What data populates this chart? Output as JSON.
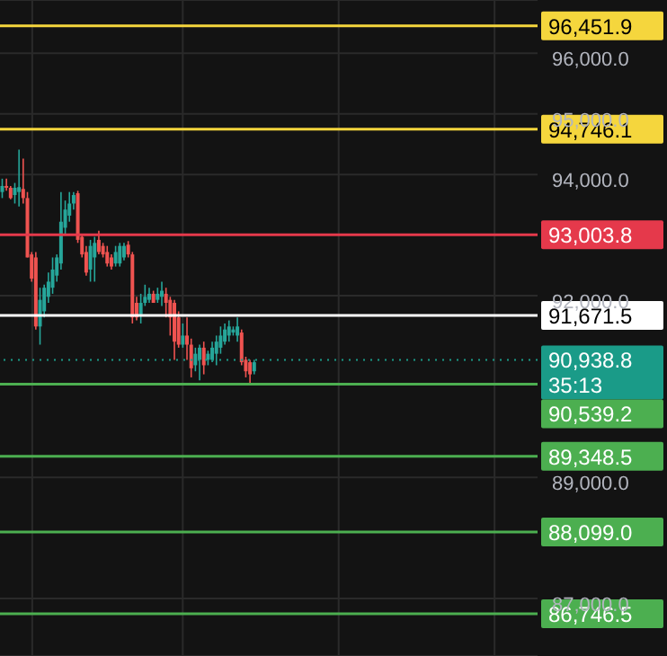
{
  "chart_data": {
    "type": "candlestick",
    "categories": [
      null,
      null,
      null,
      null,
      null,
      null,
      null,
      null,
      null,
      null,
      null,
      null,
      null,
      null,
      null,
      null,
      null,
      null,
      null,
      null,
      null,
      null,
      null,
      null,
      null,
      null,
      null,
      null,
      null,
      null,
      null,
      null,
      null,
      null,
      null,
      null,
      null,
      null,
      null,
      null,
      null,
      null,
      null,
      null,
      null,
      null,
      null,
      null,
      null,
      null,
      null,
      null,
      null,
      null,
      null,
      null,
      null,
      null,
      null,
      null,
      null,
      null,
      null,
      null,
      null,
      null,
      null,
      null,
      null,
      null,
      null,
      null,
      null,
      null,
      null,
      null,
      null,
      null,
      null,
      null,
      null,
      null,
      null,
      null,
      null,
      null,
      null,
      null,
      null,
      null,
      null,
      null,
      null,
      null,
      null,
      null,
      null,
      null,
      null,
      null,
      null,
      null,
      null,
      null,
      null,
      null,
      null,
      null,
      null,
      null,
      null,
      null,
      null,
      null,
      null,
      null,
      null,
      null,
      null,
      null,
      null,
      null,
      null,
      null,
      null,
      null,
      null,
      null
    ],
    "ohlc": [
      [
        93710,
        93930,
        93610,
        93810
      ],
      [
        93810,
        93930,
        93730,
        93790
      ],
      [
        93780,
        93810,
        93590,
        93610
      ],
      [
        93660,
        93860,
        93520,
        93780
      ],
      [
        93710,
        94410,
        93470,
        93790
      ],
      [
        93760,
        94260,
        93520,
        93610
      ],
      [
        93610,
        93710,
        92630,
        92630
      ],
      [
        92680,
        92720,
        92230,
        92280
      ],
      [
        92630,
        92720,
        91440,
        91490
      ],
      [
        91490,
        92130,
        91190,
        91930
      ],
      [
        91740,
        92180,
        91640,
        92130
      ],
      [
        91980,
        92380,
        91880,
        92230
      ],
      [
        92130,
        92630,
        92030,
        92430
      ],
      [
        92330,
        92680,
        92230,
        92630
      ],
      [
        92530,
        93710,
        92430,
        93220
      ],
      [
        93120,
        93570,
        93020,
        93420
      ],
      [
        93320,
        93710,
        93220,
        93520
      ],
      [
        93520,
        93710,
        93420,
        93660
      ],
      [
        93690,
        93730,
        92870,
        92920
      ],
      [
        92970,
        93020,
        92630,
        92680
      ],
      [
        92720,
        92820,
        92330,
        92380
      ],
      [
        92430,
        92920,
        92230,
        92820
      ],
      [
        92630,
        92970,
        92230,
        92870
      ],
      [
        92920,
        93070,
        92680,
        92720
      ],
      [
        92820,
        92870,
        92630,
        92680
      ],
      [
        92720,
        92820,
        92480,
        92530
      ],
      [
        92630,
        92680,
        92430,
        92480
      ],
      [
        92530,
        92820,
        92480,
        92720
      ],
      [
        92530,
        92870,
        92480,
        92820
      ],
      [
        92630,
        92870,
        92580,
        92820
      ],
      [
        92840,
        92900,
        92630,
        92680
      ],
      [
        92680,
        92720,
        91540,
        91640
      ],
      [
        91880,
        91980,
        91590,
        91640
      ],
      [
        91690,
        92030,
        91540,
        91880
      ],
      [
        91880,
        92180,
        91830,
        91980
      ],
      [
        91930,
        92130,
        91880,
        92030
      ],
      [
        92030,
        92080,
        91880,
        91880
      ],
      [
        91930,
        92130,
        91880,
        92030
      ],
      [
        91980,
        92230,
        91830,
        92080
      ],
      [
        92030,
        92130,
        91640,
        91880
      ],
      [
        91930,
        91980,
        91340,
        91640
      ],
      [
        91880,
        91930,
        90940,
        91240
      ],
      [
        91640,
        91740,
        91140,
        91190
      ],
      [
        91190,
        91540,
        91140,
        91340
      ],
      [
        91340,
        91640,
        90940,
        91190
      ],
      [
        91190,
        91290,
        90650,
        90800
      ],
      [
        90850,
        91140,
        90750,
        91040
      ],
      [
        90940,
        91190,
        90600,
        91140
      ],
      [
        91140,
        91240,
        90700,
        90850
      ],
      [
        90940,
        91090,
        90850,
        91040
      ],
      [
        90940,
        91240,
        90900,
        91140
      ],
      [
        91040,
        91340,
        90850,
        91240
      ],
      [
        91140,
        91490,
        91040,
        91340
      ],
      [
        91240,
        91540,
        91190,
        91440
      ],
      [
        91340,
        91590,
        91240,
        91490
      ],
      [
        91390,
        91490,
        91340,
        91440
      ],
      [
        91340,
        91640,
        91240,
        91490
      ],
      [
        91390,
        91440,
        90850,
        90900
      ],
      [
        90940,
        90990,
        90650,
        90750
      ],
      [
        90900,
        90940,
        90550,
        90700
      ],
      [
        90750,
        90940,
        90700,
        90900
      ],
      null,
      null,
      null,
      null,
      null,
      null,
      null,
      null,
      null,
      null,
      null,
      null,
      null,
      null,
      null,
      null,
      null,
      null,
      null,
      null,
      null,
      null,
      null,
      null,
      null,
      null,
      null,
      null,
      null,
      null,
      null,
      null,
      null,
      null,
      null,
      null,
      null,
      null,
      null,
      null,
      null,
      null,
      null,
      null,
      null,
      null,
      null,
      null,
      null,
      null,
      null,
      null,
      null,
      null,
      null,
      null,
      null,
      null,
      null,
      null,
      null,
      null,
      null,
      null,
      null,
      null,
      null
    ],
    "ylim": [
      86050,
      96880
    ],
    "yticks": [
      {
        "value": 87000,
        "label": "87,000.0"
      },
      {
        "value": 89000,
        "label": "89,000.0"
      },
      {
        "value": 92000,
        "label": "92,000.0"
      },
      {
        "value": 94000,
        "label": "94,000.0"
      },
      {
        "value": 95000,
        "label": "95,000.0"
      },
      {
        "value": 96000,
        "label": "96,000.0"
      }
    ],
    "grid": true,
    "ref_lines": [
      {
        "axis": "y",
        "value": 96451.9,
        "label": "96,451.9",
        "color": "#f5d63d"
      },
      {
        "axis": "y",
        "value": 94746.1,
        "label": "94,746.1",
        "color": "#f5d63d"
      },
      {
        "axis": "y",
        "value": 93003.8,
        "label": "93,003.8",
        "color": "#e5394b"
      },
      {
        "axis": "y",
        "value": 91671.5,
        "label": "91,671.5",
        "color": "#ffffff"
      },
      {
        "axis": "y",
        "value": 90938.8,
        "label": "90,938.8",
        "color": "#1a9b88",
        "line_style": "dotted"
      },
      {
        "axis": "y",
        "value": 90539.2,
        "label": "90,539.2",
        "color": "#4caf50"
      },
      {
        "axis": "y",
        "value": 89348.5,
        "label": "89,348.5",
        "color": "#4caf50"
      },
      {
        "axis": "y",
        "value": 88099.0,
        "label": "88,099.0",
        "color": "#4caf50"
      },
      {
        "axis": "y",
        "value": 86746.5,
        "label": "86,746.5",
        "color": "#4caf50"
      }
    ],
    "annotations": [
      "35:13"
    ]
  }
}
